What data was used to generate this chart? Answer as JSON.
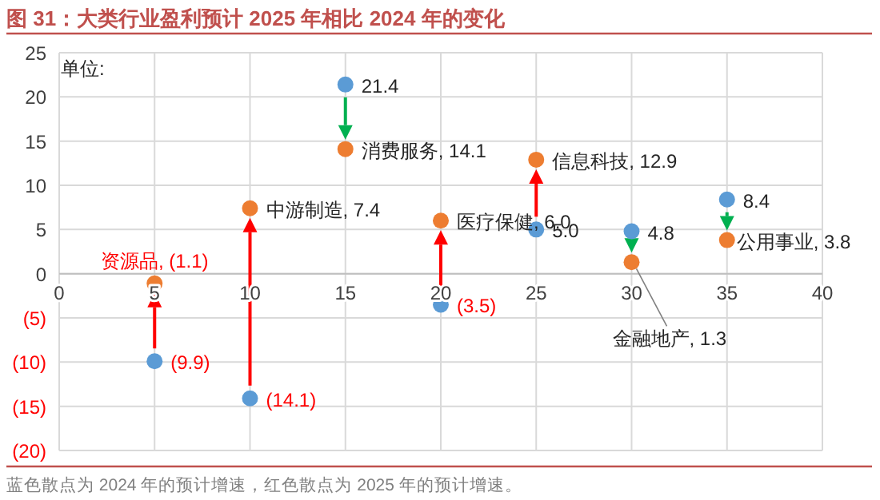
{
  "chart_data": {
    "type": "scatter",
    "title": "图 31：大类行业盈利预计 2025 年相比 2024 年的变化",
    "annotations": [
      "单位:",
      "蓝色散点为 2024 年的预计增速，红色散点为 2025 年的预计增速。"
    ],
    "x": [
      5,
      10,
      15,
      20,
      25,
      30,
      35
    ],
    "series": [
      {
        "color": "#5b9bd5",
        "values": [
          -9.9,
          -14.1,
          21.4,
          -3.5,
          5.0,
          4.8,
          8.4
        ],
        "value_labels": [
          "(9.9)",
          "(14.1)",
          "21.4",
          "(3.5)",
          "5.0",
          "4.8",
          "8.4"
        ]
      },
      {
        "color": "#ed7d31",
        "values": [
          -1.1,
          7.4,
          14.1,
          6.0,
          12.9,
          1.3,
          3.8
        ],
        "value_labels": [
          "资源品, (1.1)",
          "中游制造, 7.4",
          "消费服务, 14.1",
          "医疗保健, 6.0",
          "信息科技, 12.9",
          "金融地产, 1.3",
          "公用事业, 3.8"
        ]
      }
    ],
    "xlim": [
      0,
      40
    ],
    "xticks": [
      0,
      5,
      10,
      15,
      20,
      25,
      30,
      35,
      40
    ],
    "ylim": [
      -20,
      25
    ],
    "yticks": [
      {
        "value": -20,
        "label": "(20)"
      },
      {
        "value": -15,
        "label": "(15)"
      },
      {
        "value": -10,
        "label": "(10)"
      },
      {
        "value": -5,
        "label": "(5)"
      },
      0,
      5,
      10,
      15,
      20,
      25
    ],
    "grid": true,
    "marker": "circle"
  }
}
